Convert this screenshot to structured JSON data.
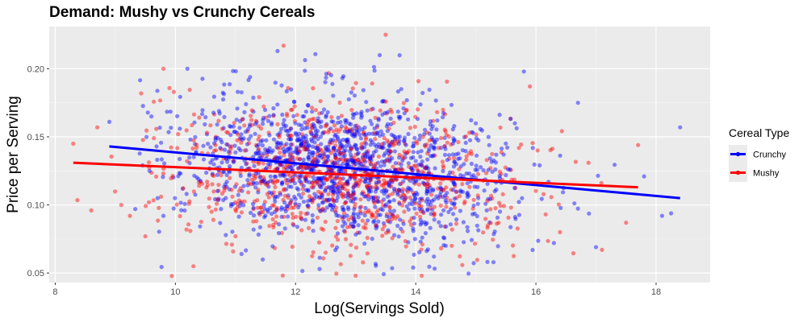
{
  "chart_data": {
    "type": "scatter",
    "title": "Demand: Mushy vs Crunchy Cereals",
    "xlabel": "Log(Servings Sold)",
    "ylabel": "Price per Serving",
    "xlim": [
      7.9,
      18.9
    ],
    "ylim": [
      0.043,
      0.231
    ],
    "x_ticks": [
      8,
      10,
      12,
      14,
      16,
      18
    ],
    "y_ticks": [
      0.05,
      0.1,
      0.15,
      0.2
    ],
    "y_tick_labels": [
      "0.05",
      "0.10",
      "0.15",
      "0.20"
    ],
    "grid": true,
    "legend": {
      "title": "Cereal Type",
      "position": "right"
    },
    "series": [
      {
        "name": "Crunchy",
        "color": "#0000FF",
        "point_alpha": 0.45,
        "point_count_approx": 1400,
        "x_range": [
          8.9,
          18.4
        ],
        "sample_points": [
          [
            8.9,
            0.161
          ],
          [
            9.6,
            0.165
          ],
          [
            9.8,
            0.092
          ],
          [
            10.2,
            0.2
          ],
          [
            11.1,
            0.064
          ],
          [
            11.7,
            0.213
          ],
          [
            12.0,
            0.13
          ],
          [
            12.4,
            0.053
          ],
          [
            13.0,
            0.125
          ],
          [
            13.4,
            0.21
          ],
          [
            14.0,
            0.118
          ],
          [
            14.5,
            0.07
          ],
          [
            15.0,
            0.12
          ],
          [
            15.8,
            0.198
          ],
          [
            16.3,
            0.072
          ],
          [
            16.7,
            0.175
          ],
          [
            17.0,
            0.069
          ],
          [
            17.8,
            0.121
          ],
          [
            18.1,
            0.092
          ],
          [
            18.4,
            0.157
          ]
        ],
        "fit_line": [
          [
            8.9,
            0.143
          ],
          [
            18.4,
            0.105
          ]
        ]
      },
      {
        "name": "Mushy",
        "color": "#FF0000",
        "point_alpha": 0.45,
        "point_count_approx": 900,
        "x_range": [
          8.3,
          17.7
        ],
        "sample_points": [
          [
            8.3,
            0.145
          ],
          [
            8.6,
            0.096
          ],
          [
            8.7,
            0.157
          ],
          [
            9.1,
            0.1
          ],
          [
            9.5,
            0.077
          ],
          [
            9.8,
            0.2
          ],
          [
            10.3,
            0.055
          ],
          [
            11.0,
            0.077
          ],
          [
            11.8,
            0.217
          ],
          [
            12.5,
            0.065
          ],
          [
            13.0,
            0.048
          ],
          [
            13.5,
            0.225
          ],
          [
            14.1,
            0.048
          ],
          [
            14.6,
            0.07
          ],
          [
            15.2,
            0.085
          ],
          [
            15.9,
            0.187
          ],
          [
            16.4,
            0.08
          ],
          [
            17.1,
            0.067
          ],
          [
            17.5,
            0.087
          ],
          [
            17.7,
            0.144
          ]
        ],
        "fit_line": [
          [
            8.3,
            0.131
          ],
          [
            17.7,
            0.113
          ]
        ]
      }
    ]
  }
}
